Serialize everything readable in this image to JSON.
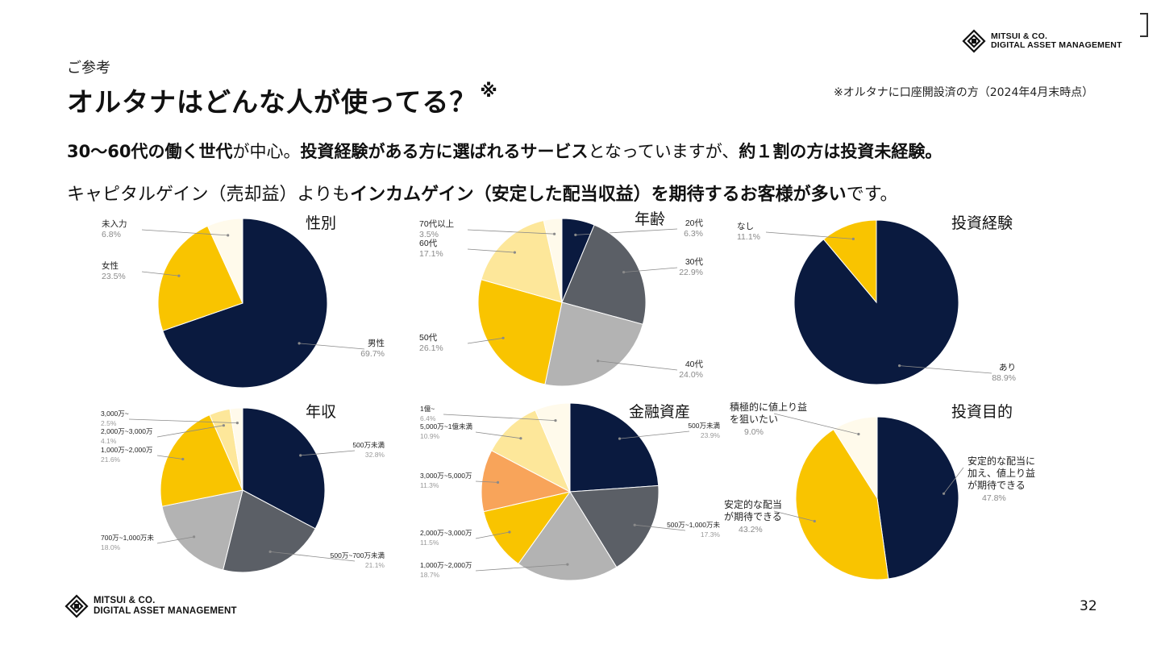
{
  "header": {
    "kicker": "ご参考",
    "title": "オルタナはどんな人が使ってる？",
    "title_mark": "※",
    "note": "※オルタナに口座開設済の方（2024年4月末時点）"
  },
  "brand": {
    "line1": "MITSUI & CO.",
    "line2": "DIGITAL ASSET MANAGEMENT"
  },
  "summary": {
    "l1_a": "30〜60代の働く世代",
    "l1_b": "が中心。",
    "l1_c": "投資経験がある方に選ばれるサービス",
    "l1_d": "となっていますが、",
    "l1_e": "約１割の方は投資未経験。",
    "l2_a": "キャピタルゲイン（売却益）よりも",
    "l2_b": "インカムゲイン（安定した配当収益）を期待するお客様が多い",
    "l2_c": "です。"
  },
  "page_number": "32",
  "colors": {
    "navy": "#0a1a3f",
    "gray_dark": "#5b5f66",
    "gray_light": "#b3b3b3",
    "yellow": "#f9c400",
    "yellow_light": "#fde79a",
    "cream": "#fffaeb",
    "orange": "#f8a45a"
  },
  "chart_data": [
    {
      "type": "pie",
      "id": "gender",
      "title": "性別",
      "slices": [
        {
          "label": "男性",
          "value": 69.7,
          "pct": "69.7%",
          "color": "#0a1a3f"
        },
        {
          "label": "女性",
          "value": 23.5,
          "pct": "23.5%",
          "color": "#f9c400"
        },
        {
          "label": "未入力",
          "value": 6.8,
          "pct": "6.8%",
          "color": "#fffaeb"
        }
      ]
    },
    {
      "type": "pie",
      "id": "age",
      "title": "年齢",
      "slices": [
        {
          "label": "20代",
          "value": 6.3,
          "pct": "6.3%",
          "color": "#0a1a3f"
        },
        {
          "label": "30代",
          "value": 22.9,
          "pct": "22.9%",
          "color": "#5b5f66"
        },
        {
          "label": "40代",
          "value": 24.0,
          "pct": "24.0%",
          "color": "#b3b3b3"
        },
        {
          "label": "50代",
          "value": 26.1,
          "pct": "26.1%",
          "color": "#f9c400"
        },
        {
          "label": "60代",
          "value": 17.1,
          "pct": "17.1%",
          "color": "#fde79a"
        },
        {
          "label": "70代以上",
          "value": 3.5,
          "pct": "3.5%",
          "color": "#fffaeb"
        }
      ]
    },
    {
      "type": "pie",
      "id": "experience",
      "title": "投資経験",
      "slices": [
        {
          "label": "あり",
          "value": 88.9,
          "pct": "88.9%",
          "color": "#0a1a3f"
        },
        {
          "label": "なし",
          "value": 11.1,
          "pct": "11.1%",
          "color": "#f9c400"
        }
      ]
    },
    {
      "type": "pie",
      "id": "income",
      "title": "年収",
      "slices": [
        {
          "label": "500万未満",
          "value": 32.8,
          "pct": "32.8%",
          "color": "#0a1a3f"
        },
        {
          "label": "500万~700万未満",
          "value": 21.1,
          "pct": "21.1%",
          "color": "#5b5f66"
        },
        {
          "label": "700万~1,000万未",
          "value": 18.0,
          "pct": "18.0%",
          "color": "#b3b3b3"
        },
        {
          "label": "1,000万~2,000万",
          "value": 21.6,
          "pct": "21.6%",
          "color": "#f9c400"
        },
        {
          "label": "2,000万~3,000万",
          "value": 4.1,
          "pct": "4.1%",
          "color": "#fde79a"
        },
        {
          "label": "3,000万~",
          "value": 2.5,
          "pct": "2.5%",
          "color": "#fffaeb"
        }
      ]
    },
    {
      "type": "pie",
      "id": "assets",
      "title": "金融資産",
      "slices": [
        {
          "label": "500万未満",
          "value": 23.9,
          "pct": "23.9%",
          "color": "#0a1a3f"
        },
        {
          "label": "500万~1,000万未",
          "value": 17.3,
          "pct": "17.3%",
          "color": "#5b5f66"
        },
        {
          "label": "1,000万~2,000万",
          "value": 18.7,
          "pct": "18.7%",
          "color": "#b3b3b3"
        },
        {
          "label": "2,000万~3,000万",
          "value": 11.5,
          "pct": "11.5%",
          "color": "#f9c400"
        },
        {
          "label": "3,000万~5,000万",
          "value": 11.3,
          "pct": "11.3%",
          "color": "#f8a45a"
        },
        {
          "label": "5,000万~1億未満",
          "value": 10.9,
          "pct": "10.9%",
          "color": "#fde79a"
        },
        {
          "label": "1億~",
          "value": 6.4,
          "pct": "6.4%",
          "color": "#fffaeb"
        }
      ]
    },
    {
      "type": "pie",
      "id": "purpose",
      "title": "投資目的",
      "slices": [
        {
          "label_lines": [
            "安定的な配当に",
            "加え、値上り益",
            "が期待できる"
          ],
          "value": 47.8,
          "pct": "47.8%",
          "color": "#0a1a3f"
        },
        {
          "label_lines": [
            "安定的な配当",
            "が期待できる"
          ],
          "value": 43.2,
          "pct": "43.2%",
          "color": "#f9c400"
        },
        {
          "label_lines": [
            "積極的に値上り益",
            "を狙いたい"
          ],
          "value": 9.0,
          "pct": "9.0%",
          "color": "#fffaeb"
        }
      ]
    }
  ]
}
